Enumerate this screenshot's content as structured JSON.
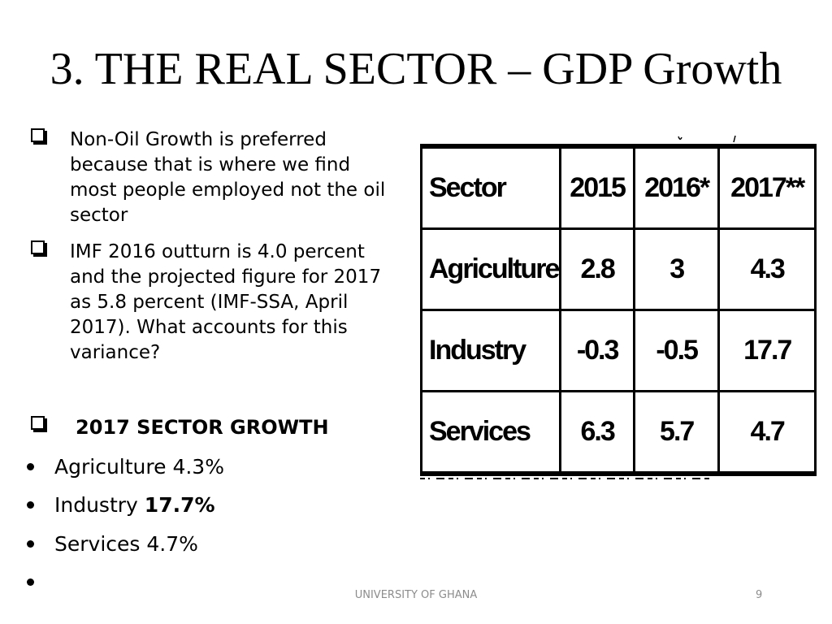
{
  "slide": {
    "title": "3. THE REAL SECTOR – GDP Growth",
    "paragraphs": [
      "Non-Oil Growth is preferred because that is where we find most people employed not the oil sector",
      "IMF 2016 outturn is 4.0 percent and the projected figure for 2017 as 5.8 percent (IMF-SSA, April 2017). What accounts for this variance?"
    ],
    "sector_heading": "2017 SECTOR GROWTH",
    "bullets": [
      {
        "label": "Agriculture",
        "value": "4.3%"
      },
      {
        "label": "Industry",
        "value": "17.7%"
      },
      {
        "label": "Services",
        "value": "4.7%"
      },
      {
        "label": "",
        "value": ""
      }
    ]
  },
  "table": {
    "headers": [
      "Sector",
      "2015",
      "2016*",
      "2017**"
    ],
    "rows": [
      [
        "Agriculture",
        "2.8",
        "3",
        "4.3"
      ],
      [
        "Industry",
        "-0.3",
        "-0.5",
        "17.7"
      ],
      [
        "Services",
        "6.3",
        "5.7",
        "4.7"
      ]
    ]
  },
  "footer": {
    "organization": "UNIVERSITY OF GHANA",
    "page_number": "9"
  }
}
